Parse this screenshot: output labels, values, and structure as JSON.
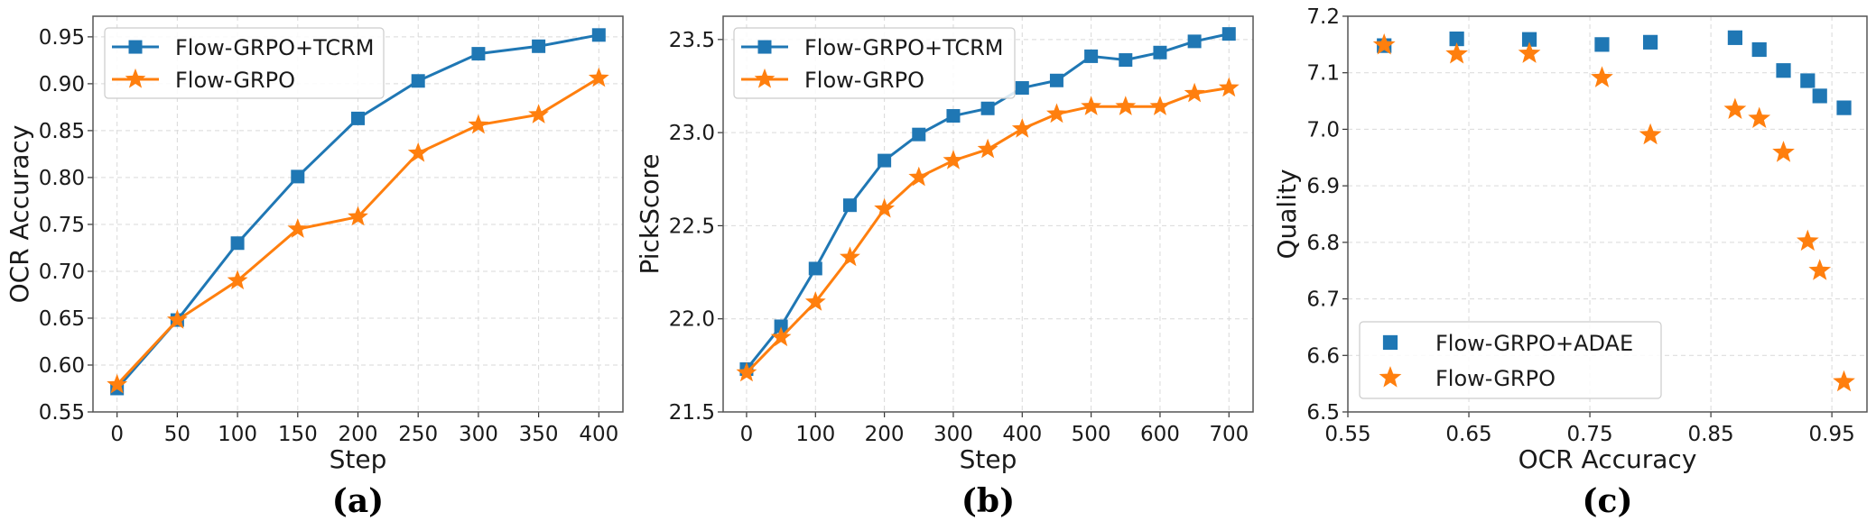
{
  "colors": {
    "blue": "#1f77b4",
    "orange": "#ff7f0e",
    "grid": "#d9d9d9",
    "frame": "#555555"
  },
  "chart_data": [
    {
      "type": "line",
      "panel_label": "(a)",
      "xlabel": "Step",
      "ylabel": "OCR Accuracy",
      "xlim": [
        -20,
        420
      ],
      "ylim": [
        0.55,
        0.972
      ],
      "xticks": [
        "0",
        "50",
        "100",
        "150",
        "200",
        "250",
        "300",
        "350",
        "400"
      ],
      "yticks": [
        "0.55",
        "0.60",
        "0.65",
        "0.70",
        "0.75",
        "0.80",
        "0.85",
        "0.90",
        "0.95"
      ],
      "grid": true,
      "legend_position": "top-left",
      "x": [
        0,
        50,
        100,
        150,
        200,
        250,
        300,
        350,
        400
      ],
      "series": [
        {
          "name": "Flow-GRPO+TCRM",
          "color": "#1f77b4",
          "marker": "square",
          "values": [
            0.575,
            0.648,
            0.73,
            0.801,
            0.863,
            0.903,
            0.932,
            0.94,
            0.952
          ]
        },
        {
          "name": "Flow-GRPO",
          "color": "#ff7f0e",
          "marker": "star",
          "values": [
            0.579,
            0.648,
            0.69,
            0.745,
            0.758,
            0.826,
            0.856,
            0.867,
            0.906
          ]
        }
      ]
    },
    {
      "type": "line",
      "panel_label": "(b)",
      "xlabel": "Step",
      "ylabel": "PickScore",
      "xlim": [
        -34,
        735
      ],
      "ylim": [
        21.5,
        23.625
      ],
      "xticks": [
        "0",
        "100",
        "200",
        "300",
        "400",
        "500",
        "600",
        "700"
      ],
      "yticks": [
        "21.5",
        "22.0",
        "22.5",
        "23.0",
        "23.5"
      ],
      "grid": true,
      "legend_position": "top-left",
      "x": [
        0,
        50,
        100,
        150,
        200,
        250,
        300,
        350,
        400,
        450,
        500,
        550,
        600,
        650,
        700
      ],
      "series": [
        {
          "name": "Flow-GRPO+TCRM",
          "color": "#1f77b4",
          "marker": "square",
          "values": [
            21.73,
            21.96,
            22.27,
            22.61,
            22.85,
            22.99,
            23.09,
            23.13,
            23.24,
            23.28,
            23.41,
            23.39,
            23.43,
            23.49,
            23.53
          ]
        },
        {
          "name": "Flow-GRPO",
          "color": "#ff7f0e",
          "marker": "star",
          "values": [
            21.71,
            21.9,
            22.09,
            22.33,
            22.59,
            22.76,
            22.85,
            22.91,
            23.02,
            23.1,
            23.14,
            23.14,
            23.14,
            23.21,
            23.24
          ]
        }
      ]
    },
    {
      "type": "scatter",
      "panel_label": "(c)",
      "xlabel": "OCR Accuracy",
      "ylabel": "Quality",
      "xlim": [
        0.55,
        0.979
      ],
      "ylim": [
        6.5,
        7.2
      ],
      "xticks": [
        "0.55",
        "0.65",
        "0.75",
        "0.85",
        "0.95"
      ],
      "yticks": [
        "6.5",
        "6.6",
        "6.7",
        "6.8",
        "6.9",
        "7.0",
        "7.1",
        "7.2"
      ],
      "grid": true,
      "legend_position": "bottom-left",
      "series": [
        {
          "name": "Flow-GRPO+ADAE",
          "color": "#1f77b4",
          "marker": "square",
          "points": [
            [
              0.58,
              7.148
            ],
            [
              0.64,
              7.16
            ],
            [
              0.7,
              7.159
            ],
            [
              0.76,
              7.15
            ],
            [
              0.8,
              7.154
            ],
            [
              0.87,
              7.162
            ],
            [
              0.89,
              7.141
            ],
            [
              0.91,
              7.104
            ],
            [
              0.93,
              7.086
            ],
            [
              0.94,
              7.059
            ],
            [
              0.96,
              7.038
            ]
          ]
        },
        {
          "name": "Flow-GRPO",
          "color": "#ff7f0e",
          "marker": "star",
          "points": [
            [
              0.58,
              7.149
            ],
            [
              0.64,
              7.133
            ],
            [
              0.7,
              7.134
            ],
            [
              0.76,
              7.091
            ],
            [
              0.8,
              6.99
            ],
            [
              0.87,
              7.035
            ],
            [
              0.89,
              7.019
            ],
            [
              0.91,
              6.959
            ],
            [
              0.93,
              6.802
            ],
            [
              0.94,
              6.75
            ],
            [
              0.96,
              6.553
            ]
          ]
        }
      ]
    }
  ]
}
